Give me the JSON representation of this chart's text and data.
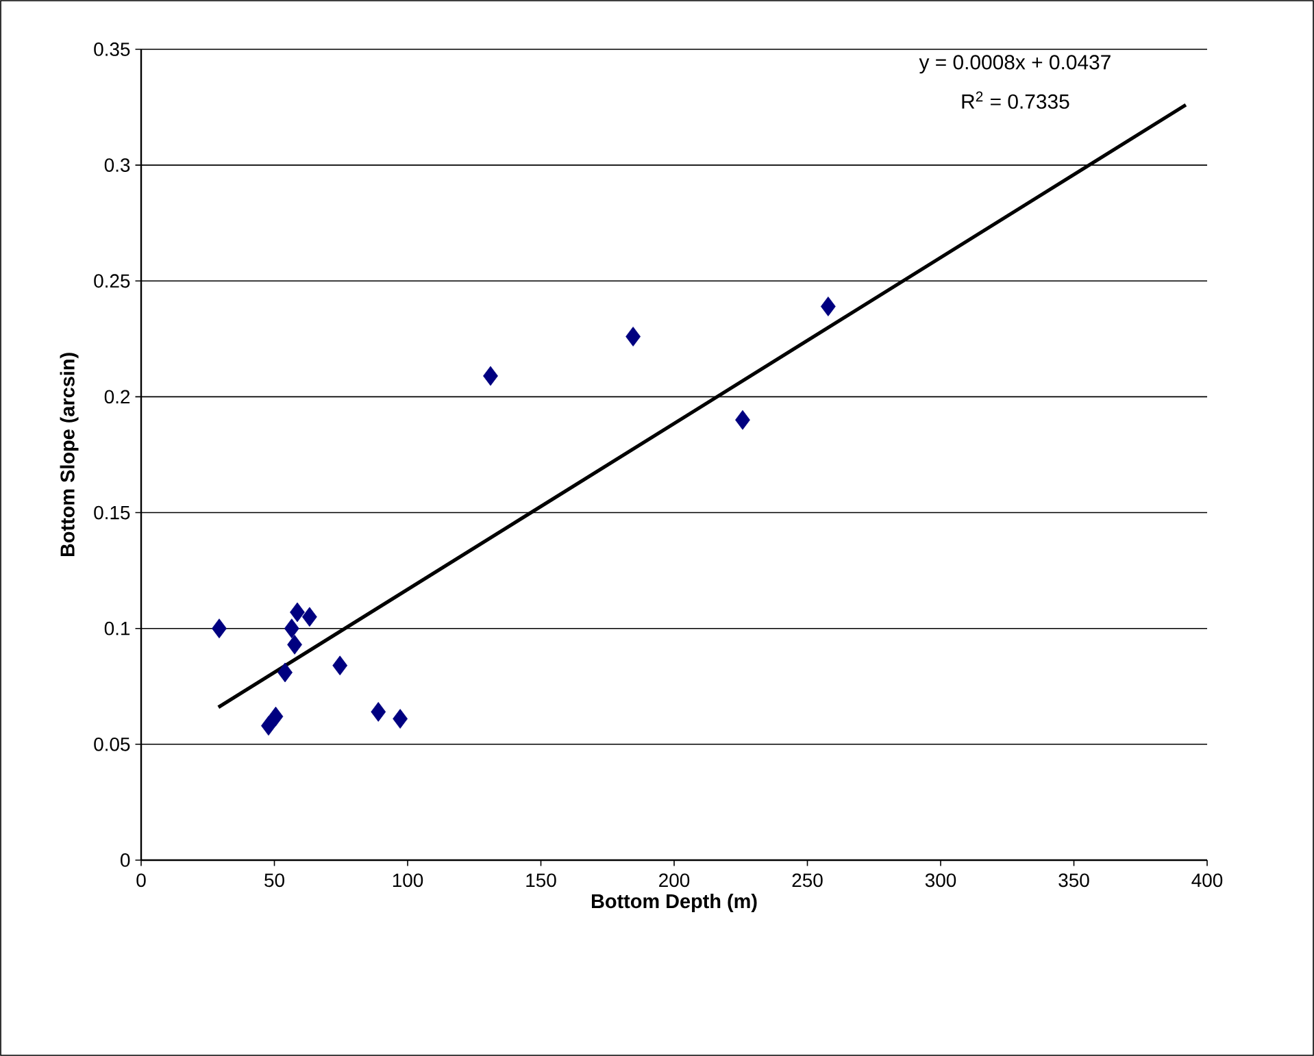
{
  "chart_data": {
    "type": "scatter",
    "xlabel": "Bottom Depth (m)",
    "ylabel": "Bottom Slope (arcsin)",
    "annotations": [
      "y = 0.0008x + 0.0437",
      "R$^{2}$ = 0.7335"
    ],
    "xlim": [
      0,
      400
    ],
    "xticks": [
      0,
      50,
      100,
      150,
      200,
      250,
      300,
      350,
      400
    ],
    "ylim": [
      0,
      0.35
    ],
    "yticks": [
      0,
      0.05,
      0.1,
      0.15,
      0.2,
      0.25,
      0.3,
      0.35
    ],
    "grid": "y",
    "series": [
      {
        "marker": "diamond",
        "color": "#000080",
        "x": [
          29.3,
          58.6,
          63.2,
          56.5,
          57.6,
          54,
          74.6,
          47.8,
          50.5,
          89,
          97.2,
          131.1,
          184.6,
          225.7,
          257.8
        ],
        "values": [
          0.1,
          0.107,
          0.105,
          0.1,
          0.093,
          0.081,
          0.084,
          0.058,
          0.062,
          0.064,
          0.061,
          0.209,
          0.226,
          0.19,
          0.239
        ]
      },
      {
        "type": "line",
        "marker": "none",
        "color": "#000000",
        "x": [
          29,
          392
        ],
        "values": [
          0.066,
          0.326
        ]
      }
    ]
  }
}
